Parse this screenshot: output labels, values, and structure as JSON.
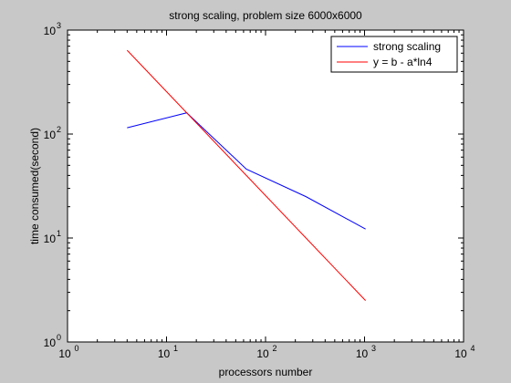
{
  "chart_data": {
    "type": "line",
    "title": "strong scaling, problem size 6000x6000",
    "xlabel": "processors number",
    "ylabel": "time consumed(second)",
    "xscale": "log",
    "yscale": "log",
    "xlim": [
      1,
      10000
    ],
    "ylim": [
      1,
      1000
    ],
    "grid": false,
    "legend_position": "top-right",
    "x_ticks": [
      {
        "value": 1,
        "base": "10",
        "exp": "0"
      },
      {
        "value": 10,
        "base": "10",
        "exp": "1"
      },
      {
        "value": 100,
        "base": "10",
        "exp": "2"
      },
      {
        "value": 1000,
        "base": "10",
        "exp": "3"
      },
      {
        "value": 10000,
        "base": "10",
        "exp": "4"
      }
    ],
    "y_ticks": [
      {
        "value": 1,
        "base": "10",
        "exp": "0"
      },
      {
        "value": 10,
        "base": "10",
        "exp": "1"
      },
      {
        "value": 100,
        "base": "10",
        "exp": "2"
      },
      {
        "value": 1000,
        "base": "10",
        "exp": "3"
      }
    ],
    "series": [
      {
        "name": "strong scaling",
        "color": "#0000ff",
        "points": [
          [
            4,
            115
          ],
          [
            16,
            160
          ],
          [
            64,
            46
          ],
          [
            256,
            25
          ],
          [
            1024,
            12.2
          ]
        ]
      },
      {
        "name": "y = b - a*ln4",
        "color": "#ff0000",
        "points": [
          [
            4,
            640
          ],
          [
            16,
            160
          ],
          [
            64,
            40
          ],
          [
            256,
            10
          ],
          [
            1024,
            2.5
          ]
        ]
      }
    ]
  }
}
